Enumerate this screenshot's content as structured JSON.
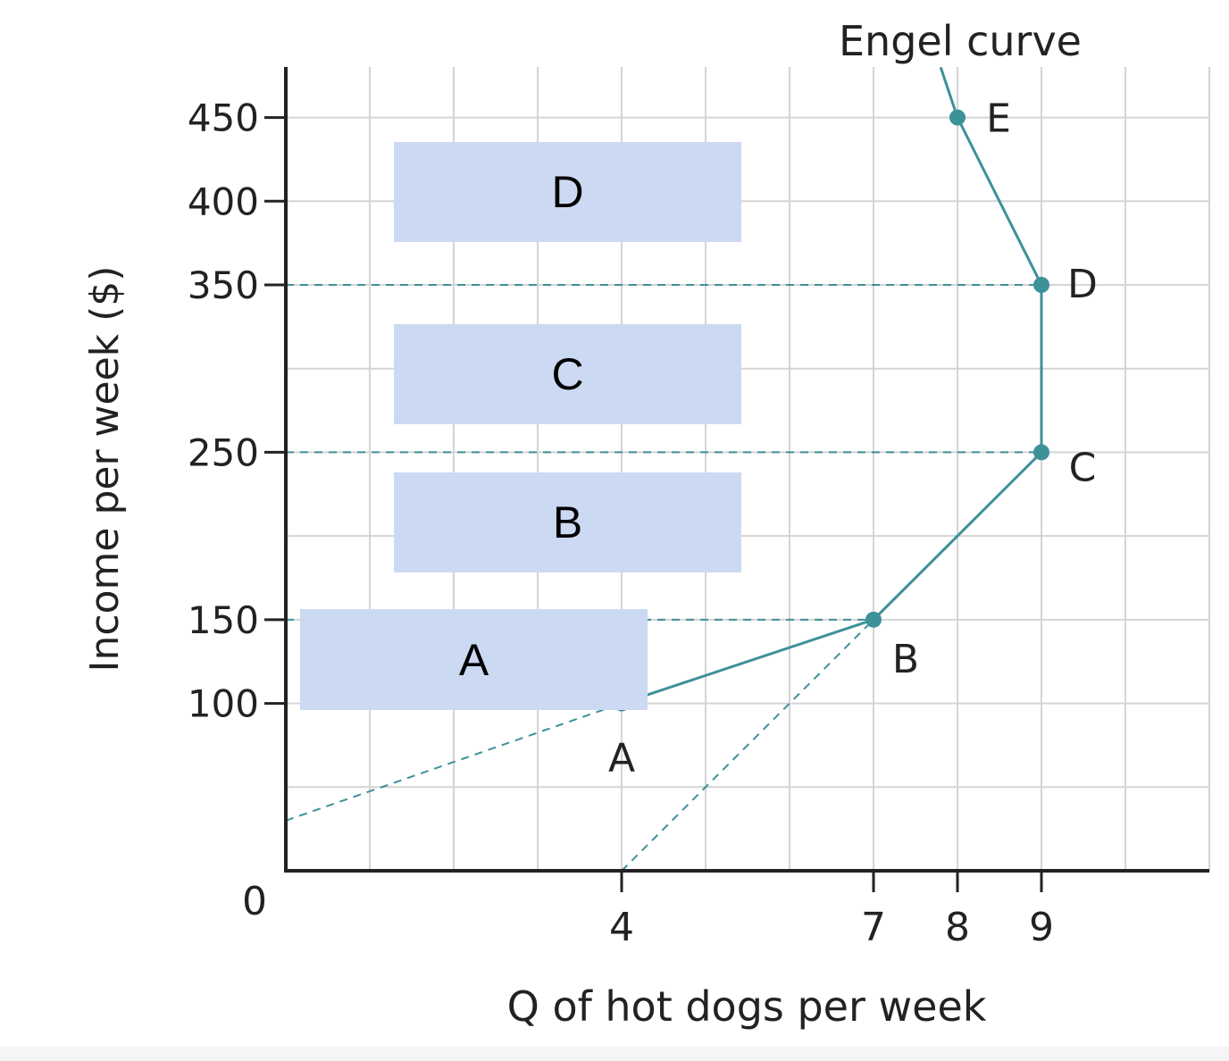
{
  "chart_data": {
    "type": "line",
    "title": "",
    "xlabel": "Q of hot dogs per week",
    "ylabel": "Income per week ($)",
    "xlim": [
      0,
      11
    ],
    "ylim": [
      0,
      500
    ],
    "grid": true,
    "origin_label": "0",
    "x_ticks": [
      4,
      7,
      8,
      9
    ],
    "x_tick_labels": [
      "4",
      "7",
      "8",
      "9"
    ],
    "y_ticks": [
      100,
      150,
      250,
      350,
      400,
      450
    ],
    "y_tick_labels": [
      "100",
      "150",
      "250",
      "350",
      "400",
      "450"
    ],
    "series": [
      {
        "name": "Engel curve",
        "points": [
          {
            "label": "A",
            "x": 4,
            "y": 100
          },
          {
            "label": "B",
            "x": 7,
            "y": 150
          },
          {
            "label": "C",
            "x": 9,
            "y": 250
          },
          {
            "label": "D",
            "x": 9,
            "y": 350
          },
          {
            "label": "E",
            "x": 8,
            "y": 450
          }
        ],
        "extends_to": {
          "x": 7.8,
          "y": 480
        }
      }
    ],
    "dashed_guides": [
      {
        "from": [
          0,
          350
        ],
        "to": [
          9,
          350
        ]
      },
      {
        "from": [
          0,
          250
        ],
        "to": [
          9,
          250
        ]
      },
      {
        "from": [
          0,
          150
        ],
        "to": [
          7,
          150
        ]
      },
      {
        "from": [
          0,
          30
        ],
        "to": [
          4,
          100
        ]
      },
      {
        "from": [
          4,
          0
        ],
        "to": [
          7,
          150
        ]
      }
    ],
    "colors": {
      "series": "#3d9199",
      "axis": "#222222",
      "grid": "#d4d4d4",
      "overlay": "#ccd9f3"
    }
  },
  "overlays": [
    {
      "label": "D"
    },
    {
      "label": "C"
    },
    {
      "label": "B"
    },
    {
      "label": "A"
    }
  ]
}
